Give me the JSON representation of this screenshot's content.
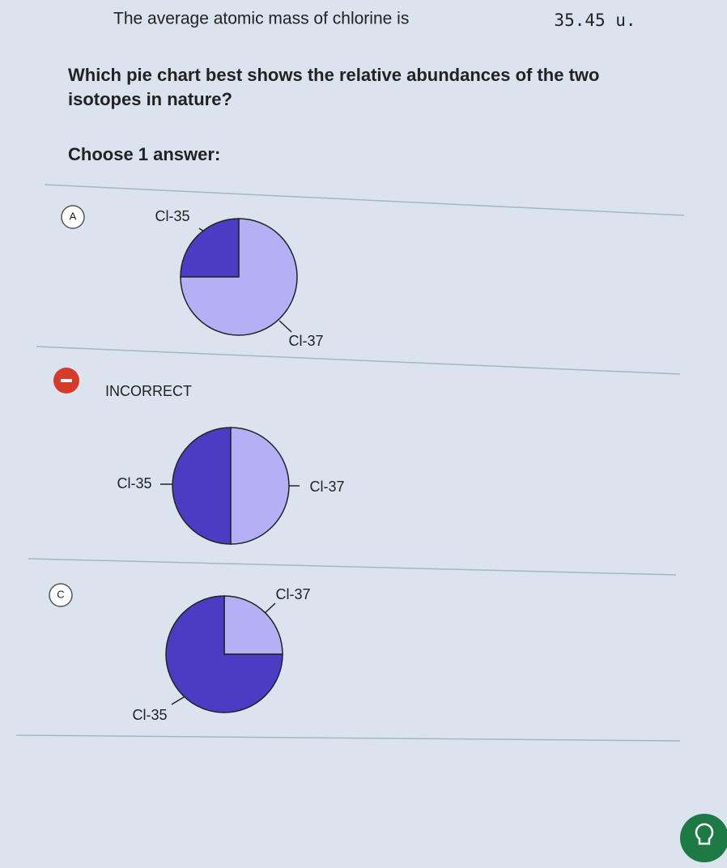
{
  "question": {
    "intro": "The average atomic mass of chlorine is",
    "value": "35.45 u.",
    "prompt": "Which pie chart best shows the relative abundances of the two isotopes in nature?"
  },
  "instruction": "Choose 1 answer:",
  "options": [
    {
      "letter": "A",
      "slices": [
        {
          "label": "Cl-35",
          "value": 25,
          "color": "#4a3dc4"
        },
        {
          "label": "Cl-37",
          "value": 75,
          "color": "#b4b0f6"
        }
      ]
    },
    {
      "status": "INCORRECT",
      "slices": [
        {
          "label": "Cl-35",
          "value": 50,
          "color": "#4a3dc4"
        },
        {
          "label": "Cl-37",
          "value": 50,
          "color": "#b4b0f6"
        }
      ]
    },
    {
      "letter": "C",
      "slices": [
        {
          "label": "Cl-37",
          "value": 25,
          "color": "#b4b0f6"
        },
        {
          "label": "Cl-35",
          "value": 75,
          "color": "#4a3dc4"
        }
      ]
    }
  ]
}
